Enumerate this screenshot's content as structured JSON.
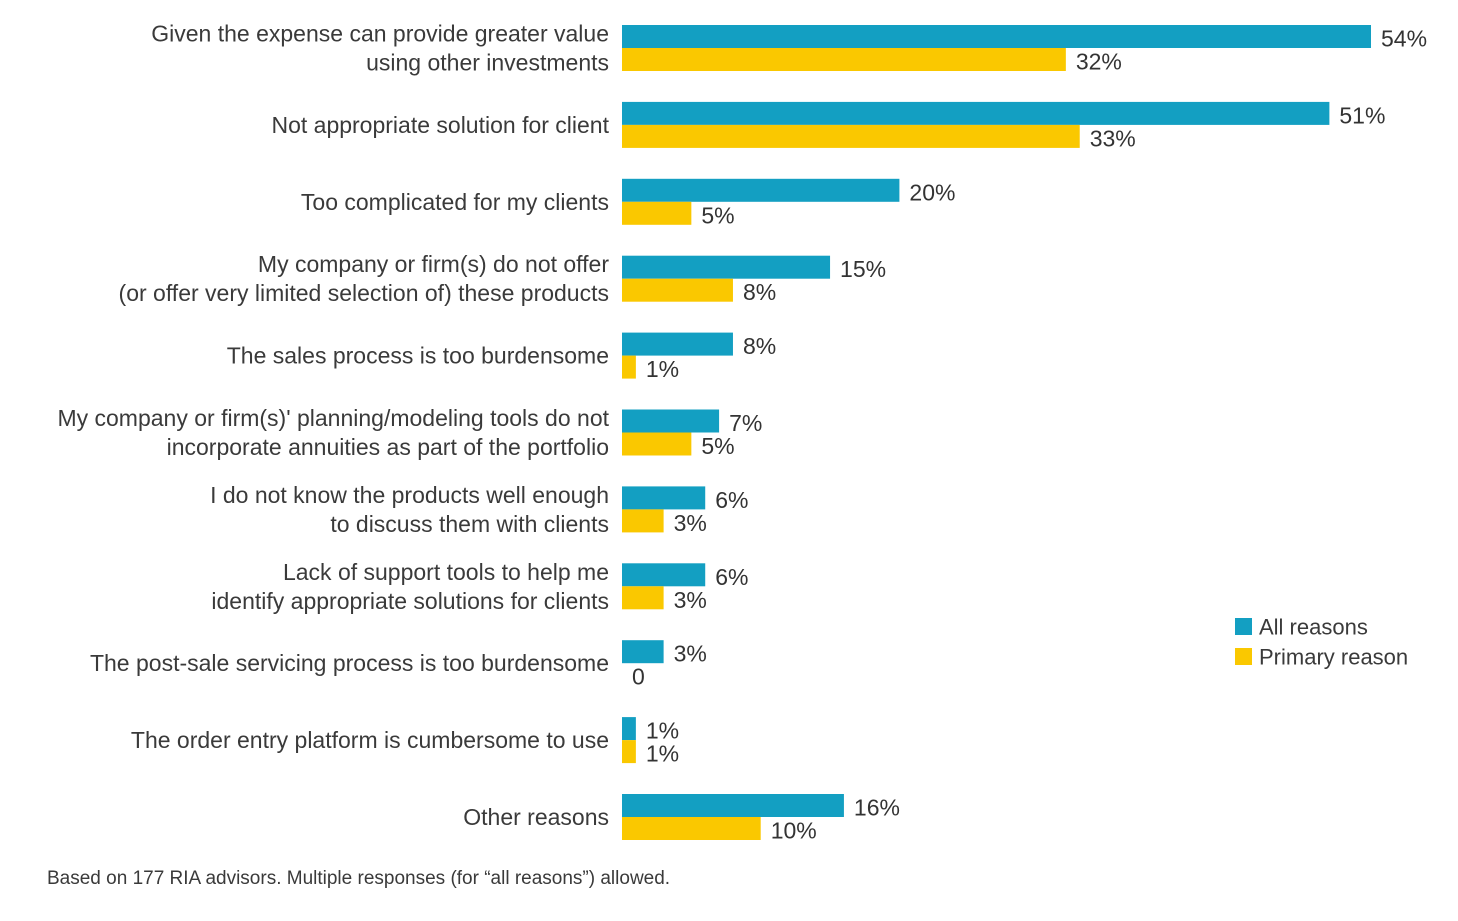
{
  "chart_data": {
    "type": "bar",
    "orientation": "horizontal",
    "categories": [
      [
        "Given the expense can provide greater value",
        "using other investments"
      ],
      [
        "Not appropriate solution for client"
      ],
      [
        "Too complicated for my clients"
      ],
      [
        "My company or firm(s) do not offer",
        "(or offer very limited selection of) these products"
      ],
      [
        "The sales process is too burdensome"
      ],
      [
        "My company or firm(s)' planning/modeling tools do not",
        "incorporate annuities as part of the portfolio"
      ],
      [
        "I do not know the products well enough",
        "to discuss them with clients"
      ],
      [
        "Lack of support tools to help me",
        "identify appropriate solutions for clients"
      ],
      [
        "The post-sale servicing process is too burdensome"
      ],
      [
        "The order entry platform is cumbersome to use"
      ],
      [
        "Other reasons"
      ]
    ],
    "series": [
      {
        "name": "All reasons",
        "color": "#139fc2",
        "values": [
          54,
          51,
          20,
          15,
          8,
          7,
          6,
          6,
          3,
          1,
          16
        ],
        "labels": [
          "54%",
          "51%",
          "20%",
          "15%",
          "8%",
          "7%",
          "6%",
          "6%",
          "3%",
          "1%",
          "16%"
        ]
      },
      {
        "name": "Primary reason",
        "color": "#fac800",
        "values": [
          32,
          33,
          5,
          8,
          1,
          5,
          3,
          3,
          0,
          1,
          10
        ],
        "labels": [
          "32%",
          "33%",
          "5%",
          "8%",
          "1%",
          "5%",
          "3%",
          "3%",
          "0",
          "1%",
          "10%"
        ]
      }
    ],
    "xlim": [
      0,
      54
    ],
    "grid": false,
    "legend_position": "right",
    "title": "",
    "xlabel": "",
    "ylabel": ""
  },
  "footnote": "Based on 177 RIA advisors. Multiple responses (for “all reasons”) allowed."
}
